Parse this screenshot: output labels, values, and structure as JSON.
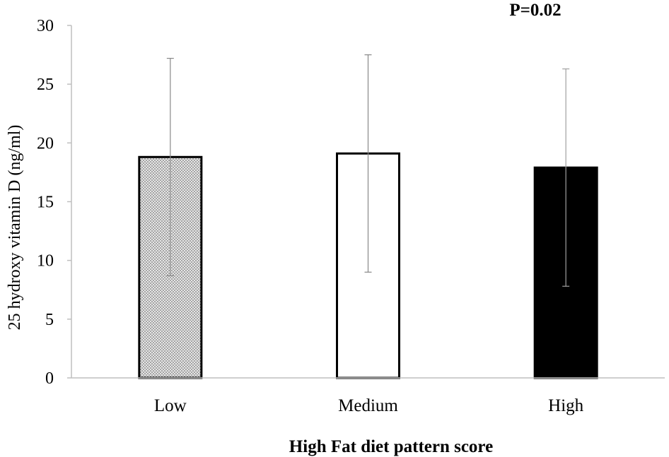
{
  "chart_data": {
    "type": "bar",
    "title": "",
    "annotation": "P=0.02",
    "xlabel": "High Fat diet pattern score",
    "ylabel": "25 hydroxy vitamin D (ng/ml)",
    "ylim": [
      0,
      30
    ],
    "yticks": [
      0,
      5,
      10,
      15,
      20,
      25,
      30
    ],
    "grid": false,
    "categories": [
      "Low",
      "Medium",
      "High"
    ],
    "values": [
      18.8,
      19.1,
      17.9
    ],
    "error_bars": [
      {
        "low": 8.7,
        "high": 27.2
      },
      {
        "low": 9.0,
        "high": 27.5
      },
      {
        "low": 7.8,
        "high": 26.3
      }
    ],
    "fills": [
      "dotted",
      "white",
      "black"
    ]
  },
  "colors": {
    "bar_edge": "#000000",
    "dotted_bg": "#e6e6e6",
    "dotted_dot": "#555555",
    "white_fill": "#ffffff",
    "black_fill": "#000000",
    "error_bar": "#888888"
  }
}
